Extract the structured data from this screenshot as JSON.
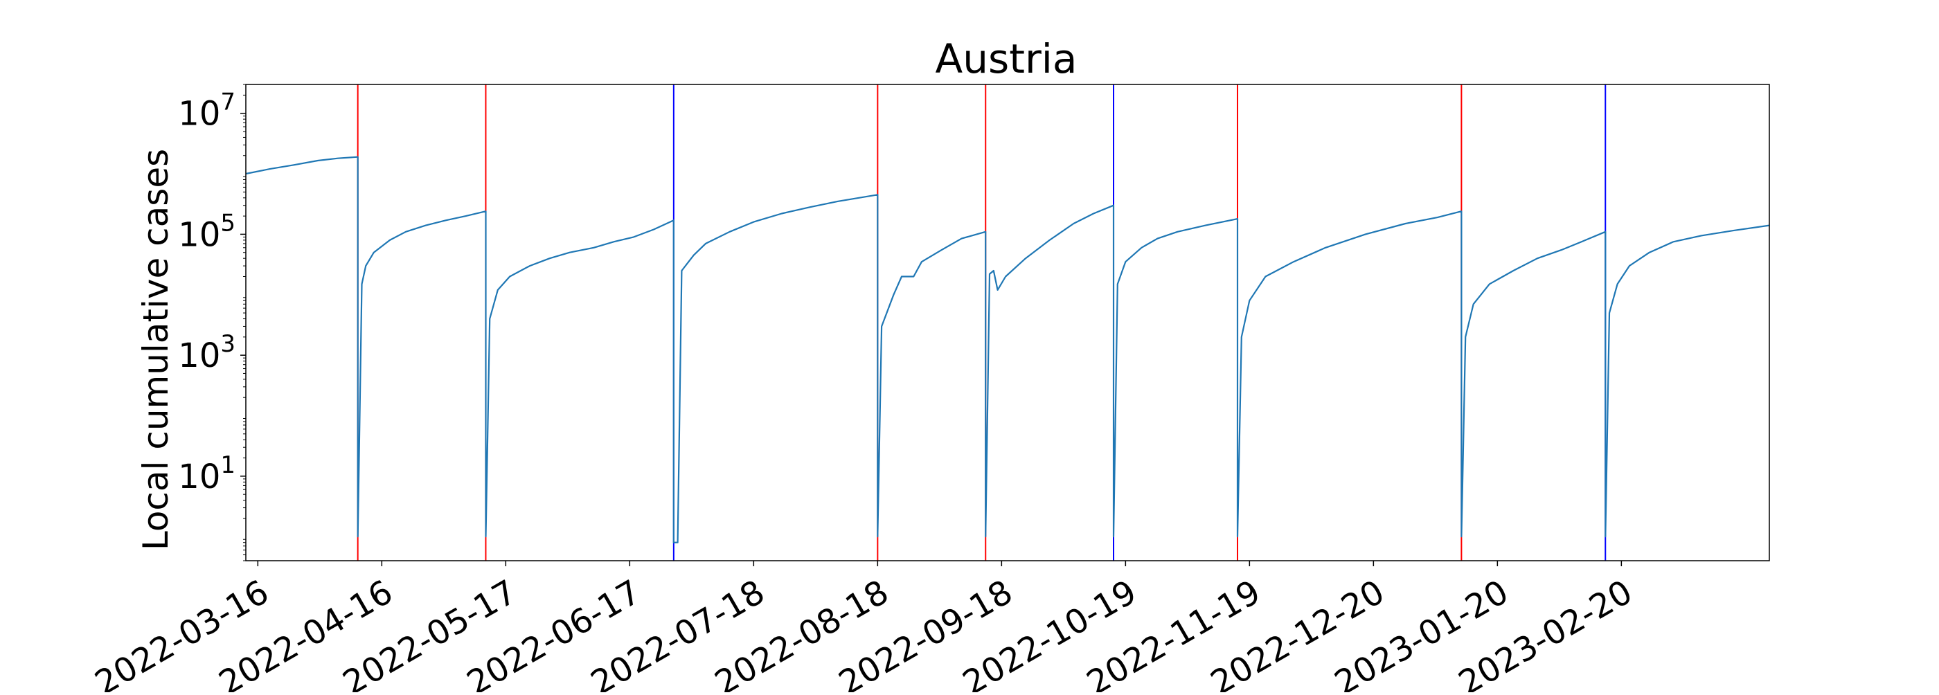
{
  "chart_data": {
    "type": "line",
    "title": "Austria",
    "xlabel": "",
    "ylabel": "Local cumulative cases",
    "y_scale": "log",
    "ylim": [
      0.4,
      30000000
    ],
    "xlim": [
      "2022-03-13",
      "2023-03-29"
    ],
    "grid": false,
    "legend": "none",
    "x_ticks": [
      "2022-03-16",
      "2022-04-16",
      "2022-05-17",
      "2022-06-17",
      "2022-07-18",
      "2022-08-18",
      "2022-09-18",
      "2022-10-19",
      "2022-11-19",
      "2022-12-20",
      "2023-01-20",
      "2023-02-20"
    ],
    "y_ticks": [
      {
        "value": 10,
        "base": "10",
        "exp": "1"
      },
      {
        "value": 1000,
        "base": "10",
        "exp": "3"
      },
      {
        "value": 100000,
        "base": "10",
        "exp": "5"
      },
      {
        "value": 10000000,
        "base": "10",
        "exp": "7"
      }
    ],
    "vlines": [
      {
        "date": "2022-04-10",
        "color": "#ff0000"
      },
      {
        "date": "2022-05-12",
        "color": "#ff0000"
      },
      {
        "date": "2022-06-28",
        "color": "#0000ff"
      },
      {
        "date": "2022-08-18",
        "color": "#ff0000"
      },
      {
        "date": "2022-09-14",
        "color": "#ff0000"
      },
      {
        "date": "2022-10-16",
        "color": "#0000ff"
      },
      {
        "date": "2022-11-16",
        "color": "#ff0000"
      },
      {
        "date": "2023-01-11",
        "color": "#ff0000"
      },
      {
        "date": "2023-02-16",
        "color": "#0000ff"
      }
    ],
    "line_color": "#1f77b4",
    "segments": [
      [
        [
          "2022-03-13",
          1000000
        ],
        [
          "2022-03-19",
          1200000
        ],
        [
          "2022-03-25",
          1400000
        ],
        [
          "2022-03-31",
          1650000
        ],
        [
          "2022-04-05",
          1800000
        ],
        [
          "2022-04-10",
          1900000
        ]
      ],
      [
        [
          "2022-04-10",
          1
        ],
        [
          "2022-04-11",
          15000
        ],
        [
          "2022-04-12",
          30000
        ],
        [
          "2022-04-14",
          50000
        ],
        [
          "2022-04-18",
          80000
        ],
        [
          "2022-04-22",
          110000
        ],
        [
          "2022-04-27",
          140000
        ],
        [
          "2022-05-02",
          170000
        ],
        [
          "2022-05-07",
          200000
        ],
        [
          "2022-05-12",
          240000
        ]
      ],
      [
        [
          "2022-05-12",
          1
        ],
        [
          "2022-05-13",
          4000
        ],
        [
          "2022-05-15",
          12000
        ],
        [
          "2022-05-18",
          20000
        ],
        [
          "2022-05-23",
          30000
        ],
        [
          "2022-05-28",
          40000
        ],
        [
          "2022-06-02",
          50000
        ],
        [
          "2022-06-08",
          60000
        ],
        [
          "2022-06-13",
          75000
        ],
        [
          "2022-06-18",
          90000
        ],
        [
          "2022-06-23",
          120000
        ],
        [
          "2022-06-28",
          170000
        ]
      ],
      [
        [
          "2022-06-28",
          0.8
        ],
        [
          "2022-06-29",
          0.8
        ],
        [
          "2022-06-30",
          25000
        ],
        [
          "2022-07-03",
          45000
        ],
        [
          "2022-07-06",
          70000
        ],
        [
          "2022-07-12",
          110000
        ],
        [
          "2022-07-18",
          160000
        ],
        [
          "2022-07-25",
          220000
        ],
        [
          "2022-08-01",
          280000
        ],
        [
          "2022-08-08",
          350000
        ],
        [
          "2022-08-18",
          450000
        ]
      ],
      [
        [
          "2022-08-18",
          1
        ],
        [
          "2022-08-19",
          3000
        ],
        [
          "2022-08-22",
          10000
        ],
        [
          "2022-08-24",
          20000
        ],
        [
          "2022-08-27",
          20000
        ],
        [
          "2022-08-29",
          35000
        ],
        [
          "2022-09-03",
          55000
        ],
        [
          "2022-09-08",
          85000
        ],
        [
          "2022-09-14",
          110000
        ]
      ],
      [
        [
          "2022-09-14",
          1
        ],
        [
          "2022-09-15",
          22000
        ],
        [
          "2022-09-16",
          25000
        ],
        [
          "2022-09-17",
          12000
        ],
        [
          "2022-09-19",
          20000
        ],
        [
          "2022-09-24",
          40000
        ],
        [
          "2022-09-30",
          80000
        ],
        [
          "2022-10-06",
          150000
        ],
        [
          "2022-10-11",
          220000
        ],
        [
          "2022-10-16",
          300000
        ]
      ],
      [
        [
          "2022-10-16",
          1
        ],
        [
          "2022-10-17",
          15000
        ],
        [
          "2022-10-19",
          35000
        ],
        [
          "2022-10-23",
          60000
        ],
        [
          "2022-10-27",
          85000
        ],
        [
          "2022-11-01",
          110000
        ],
        [
          "2022-11-08",
          140000
        ],
        [
          "2022-11-16",
          180000
        ]
      ],
      [
        [
          "2022-11-16",
          1
        ],
        [
          "2022-11-17",
          2000
        ],
        [
          "2022-11-19",
          8000
        ],
        [
          "2022-11-23",
          20000
        ],
        [
          "2022-11-30",
          35000
        ],
        [
          "2022-12-08",
          60000
        ],
        [
          "2022-12-18",
          100000
        ],
        [
          "2022-12-28",
          150000
        ],
        [
          "2023-01-05",
          190000
        ],
        [
          "2023-01-11",
          240000
        ]
      ],
      [
        [
          "2023-01-11",
          1
        ],
        [
          "2023-01-12",
          2000
        ],
        [
          "2023-01-14",
          7000
        ],
        [
          "2023-01-18",
          15000
        ],
        [
          "2023-01-24",
          25000
        ],
        [
          "2023-01-30",
          40000
        ],
        [
          "2023-02-05",
          55000
        ],
        [
          "2023-02-11",
          80000
        ],
        [
          "2023-02-16",
          110000
        ]
      ],
      [
        [
          "2023-02-16",
          1
        ],
        [
          "2023-02-17",
          5000
        ],
        [
          "2023-02-19",
          15000
        ],
        [
          "2023-02-22",
          30000
        ],
        [
          "2023-02-27",
          50000
        ],
        [
          "2023-03-05",
          75000
        ],
        [
          "2023-03-12",
          95000
        ],
        [
          "2023-03-20",
          115000
        ],
        [
          "2023-03-29",
          140000
        ]
      ]
    ]
  }
}
